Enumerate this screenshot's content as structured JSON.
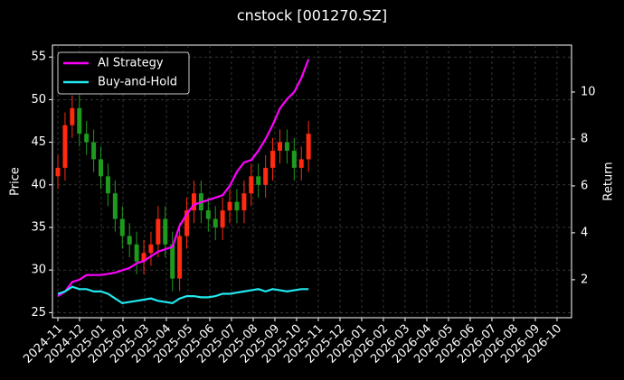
{
  "chart_data": {
    "type": "candlestick",
    "title": "cnstock [001270.SZ]",
    "ylabel": "Price",
    "y2label": "Return",
    "x": [
      0,
      0.33,
      0.66,
      0.99,
      1.32,
      1.65,
      1.98,
      2.31,
      2.64,
      2.97,
      3.3,
      3.63,
      3.96,
      4.29,
      4.62,
      4.95,
      5.28,
      5.61,
      5.94,
      6.27,
      6.6,
      6.93,
      7.26,
      7.59,
      7.92,
      8.25,
      8.58,
      8.91,
      9.24,
      9.57,
      9.9,
      10.23,
      10.56,
      10.89,
      11.22,
      11.55
    ],
    "open": [
      41,
      42,
      47,
      49,
      46,
      45,
      43,
      41,
      39,
      36,
      34,
      33,
      31,
      32,
      33,
      36,
      33,
      29,
      34,
      37,
      39,
      37,
      36,
      35,
      37,
      38,
      37,
      39,
      41,
      40,
      42,
      44,
      45,
      44,
      42,
      43
    ],
    "high": [
      43.5,
      48.5,
      50.5,
      50.5,
      47.5,
      46.5,
      44.5,
      42.5,
      40.5,
      37.5,
      35.5,
      34.5,
      33.5,
      34.5,
      37.5,
      37.5,
      34.5,
      35.5,
      38.5,
      40.5,
      40.5,
      38.5,
      37.5,
      38.5,
      39.5,
      39.5,
      40.5,
      42.5,
      42.5,
      43.5,
      45.5,
      46.5,
      46.5,
      45.5,
      44.5,
      47.5
    ],
    "low": [
      39.5,
      40.5,
      45.5,
      44.5,
      43.5,
      41.5,
      39.5,
      37.5,
      34.5,
      32.5,
      31.5,
      29.5,
      29.5,
      30.5,
      31.5,
      31.5,
      27.5,
      27.5,
      32.5,
      35.5,
      35.5,
      34.5,
      33.5,
      33.5,
      35.5,
      35.5,
      35.5,
      37.5,
      38.5,
      38.5,
      40.5,
      42.5,
      42.5,
      40.5,
      40.5,
      41.5
    ],
    "close": [
      42,
      47,
      49,
      46,
      45,
      43,
      41,
      39,
      36,
      34,
      33,
      31,
      32,
      33,
      36,
      33,
      29,
      34,
      37,
      39,
      37,
      36,
      35,
      37,
      38,
      37,
      39,
      41,
      40,
      42,
      44,
      45,
      44,
      42,
      43,
      46
    ],
    "up_color": "#ff2a10",
    "down_color": "#1f9a1f",
    "series": [
      {
        "name": "AI Strategy",
        "color": "#ff00ff",
        "axis": "y2",
        "values": [
          1.3,
          1.5,
          1.9,
          2.0,
          2.2,
          2.2,
          2.2,
          2.25,
          2.3,
          2.4,
          2.5,
          2.7,
          2.8,
          3.0,
          3.2,
          3.3,
          3.4,
          4.3,
          4.8,
          5.2,
          5.3,
          5.4,
          5.5,
          5.6,
          6.0,
          6.6,
          7.0,
          7.1,
          7.5,
          8.0,
          8.6,
          9.3,
          9.7,
          10.0,
          10.6,
          11.4
        ]
      },
      {
        "name": "Buy-and-Hold",
        "color": "#22e8f0",
        "axis": "y2",
        "values": [
          1.4,
          1.5,
          1.7,
          1.6,
          1.6,
          1.5,
          1.5,
          1.4,
          1.2,
          1.0,
          1.05,
          1.1,
          1.15,
          1.2,
          1.1,
          1.05,
          1.0,
          1.2,
          1.3,
          1.3,
          1.25,
          1.25,
          1.3,
          1.4,
          1.4,
          1.45,
          1.5,
          1.55,
          1.6,
          1.5,
          1.6,
          1.55,
          1.5,
          1.55,
          1.6,
          1.6
        ]
      }
    ],
    "xlim": [
      -0.25,
      23.67
    ],
    "xticks": [
      {
        "value": 0,
        "label": "2024-11"
      },
      {
        "value": 1,
        "label": "2024-12"
      },
      {
        "value": 2,
        "label": "2025-01"
      },
      {
        "value": 3,
        "label": "2025-02"
      },
      {
        "value": 4,
        "label": "2025-03"
      },
      {
        "value": 5,
        "label": "2025-04"
      },
      {
        "value": 6,
        "label": "2025-05"
      },
      {
        "value": 7,
        "label": "2025-06"
      },
      {
        "value": 8,
        "label": "2025-07"
      },
      {
        "value": 9,
        "label": "2025-08"
      },
      {
        "value": 10,
        "label": "2025-09"
      },
      {
        "value": 11,
        "label": "2025-10"
      },
      {
        "value": 12,
        "label": "2025-11"
      },
      {
        "value": 13,
        "label": "2025-12"
      },
      {
        "value": 14,
        "label": "2026-01"
      },
      {
        "value": 15,
        "label": "2026-02"
      },
      {
        "value": 16,
        "label": "2026-03"
      },
      {
        "value": 17,
        "label": "2026-04"
      },
      {
        "value": 18,
        "label": "2026-05"
      },
      {
        "value": 19,
        "label": "2026-06"
      },
      {
        "value": 20,
        "label": "2026-07"
      },
      {
        "value": 21,
        "label": "2026-08"
      },
      {
        "value": 22,
        "label": "2026-09"
      },
      {
        "value": 23,
        "label": "2026-10"
      }
    ],
    "ylim": [
      24.4,
      56.4
    ],
    "yticks": [
      25,
      30,
      35,
      40,
      45,
      50,
      55
    ],
    "y2lim": [
      0.38,
      12.0
    ],
    "y2ticks": [
      2,
      4,
      6,
      8,
      10
    ],
    "grid": true,
    "legend": "upper left"
  }
}
